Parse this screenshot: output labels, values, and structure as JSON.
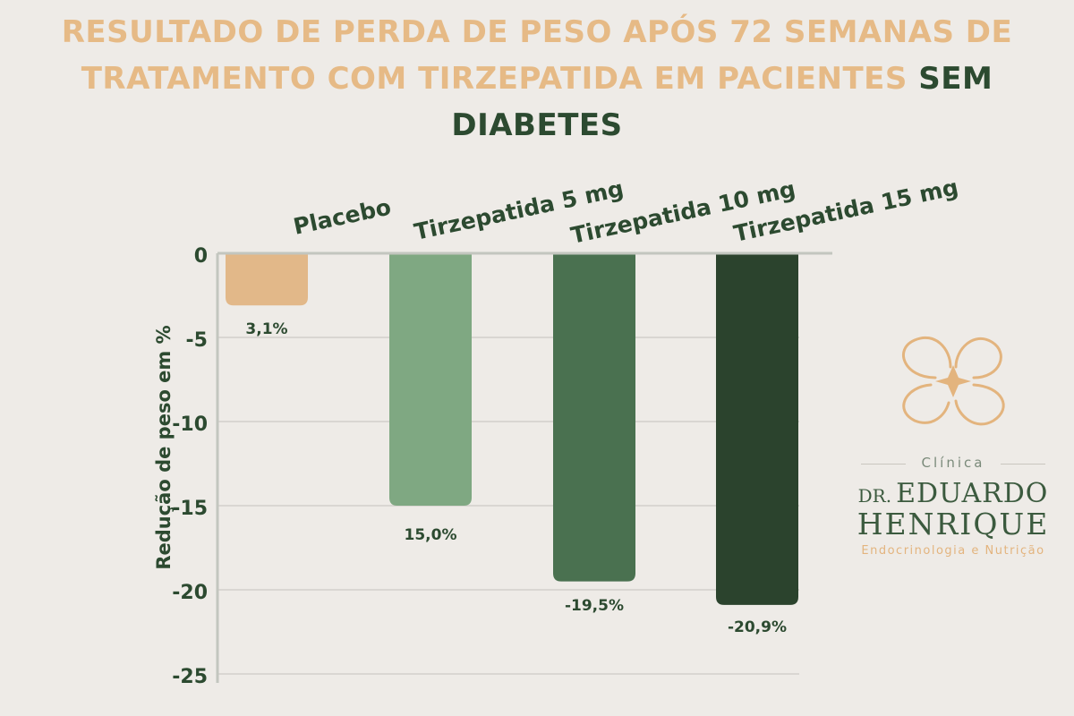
{
  "header": {
    "title_part1": "RESULTADO DE PERDA DE PESO APÓS 72 SEMANAS DE",
    "title_part2": "TRATAMENTO COM TIRZEPATIDA  EM PACIENTES",
    "title_accent": "SEM DIABETES"
  },
  "colors": {
    "title": "#e6ba86",
    "accent": "#2c4a30",
    "text_dark": "#2c4a30"
  },
  "chart_data": {
    "type": "bar",
    "categories": [
      "Placebo",
      "Tirzepatida 5 mg",
      "Tirzepatida 10 mg",
      "Tirzepatida 15 mg"
    ],
    "values": [
      -3.1,
      -15.0,
      -19.5,
      -20.9
    ],
    "data_labels": [
      "3,1%",
      "15,0%",
      "-19,5%",
      "-20,9%"
    ],
    "bar_colors": [
      "#e2b889",
      "#7fa882",
      "#4a7150",
      "#2b432d"
    ],
    "ylabel": "Redução de peso em %",
    "xlabel": "",
    "ylim": [
      -25,
      0
    ],
    "y_ticks": [
      0,
      -5,
      -10,
      -15,
      -20,
      -25
    ],
    "y_tick_labels": [
      "0",
      "-5",
      "-10",
      "-15",
      "-20",
      "-25"
    ],
    "grid": true,
    "category_label_position": "top, rotated"
  },
  "logo": {
    "clinica": "Clínica",
    "dr": "DR.",
    "first_name": "EDUARDO",
    "last_name": "HENRIQUE",
    "specialty": "Endocrinologia e Nutrição"
  }
}
